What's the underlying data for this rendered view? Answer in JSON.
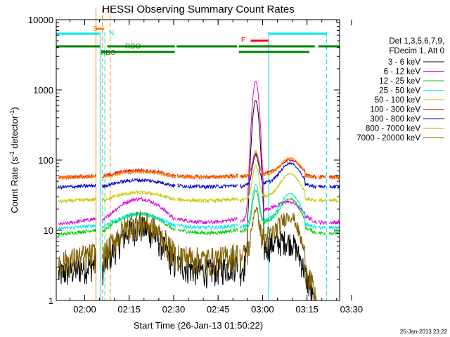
{
  "chart_data": {
    "type": "line",
    "title": "HESSI Observing Summary Count Rates",
    "xlabel": "Start Time (26-Jan-13 01:50:22)",
    "ylabel_main": "Count Rate (s",
    "ylabel_sup1": "-1",
    "ylabel_mid": " detector",
    "ylabel_sup2": "-1",
    "ylabel_end": ")",
    "x_range_min": [
      0,
      95.6
    ],
    "x_ticks": [
      {
        "label": "02:00",
        "t": 9.6
      },
      {
        "label": "02:15",
        "t": 24.6
      },
      {
        "label": "02:30",
        "t": 39.6
      },
      {
        "label": "02:45",
        "t": 54.6
      },
      {
        "label": "03:00",
        "t": 69.6
      },
      {
        "label": "03:15",
        "t": 84.6
      },
      {
        "label": "03:30",
        "t": 99.6
      }
    ],
    "y_scale": "log",
    "ylim": [
      1,
      10000
    ],
    "y_ticks": [
      {
        "label": "10000",
        "v": 10000
      },
      {
        "label": "1000",
        "v": 1000
      },
      {
        "label": "100",
        "v": 100
      },
      {
        "label": "10",
        "v": 10
      },
      {
        "label": "1",
        "v": 1
      }
    ],
    "legend_header": [
      "Det 1,3,5,6,7,9,",
      "FDecim 1, Att 0"
    ],
    "legend_position": "right",
    "timestamp": "25-Jan-2013 23:22",
    "series": [
      {
        "name": "3 - 6 keV",
        "color": "#000000",
        "base": 2,
        "amp": 1.1,
        "peak": 700,
        "low": true
      },
      {
        "name": "6 - 12 keV",
        "color": "#e000e0",
        "base": 11,
        "amp": 0.5,
        "peak": 1300,
        "low": false
      },
      {
        "name": "12 - 25 keV",
        "color": "#00d000",
        "base": 8,
        "amp": 0.4,
        "peak": 25,
        "low": false
      },
      {
        "name": "25 - 50 keV",
        "color": "#00e8e8",
        "base": 10,
        "amp": 0.25,
        "peak": 32,
        "low": false
      },
      {
        "name": "50 - 100 keV",
        "color": "#c8c800",
        "base": 25,
        "amp": 0.15,
        "peak": 55,
        "low": false
      },
      {
        "name": "100 - 300 keV",
        "color": "#e00000",
        "base": 55,
        "amp": 0.12,
        "peak": 60,
        "low": false
      },
      {
        "name": "300 - 800 keV",
        "color": "#0000d0",
        "base": 40,
        "amp": 0.12,
        "peak": 72,
        "low": false
      },
      {
        "name": "800 - 7000 keV",
        "color": "#ff8000",
        "base": 55,
        "amp": 0.1,
        "peak": 72,
        "low": false
      },
      {
        "name": "7000 - 20000 keV",
        "color": "#806000",
        "base": 3,
        "amp": 0.9,
        "peak": 14,
        "low": true
      }
    ],
    "flags": [
      {
        "label": "S",
        "color": "#ff8000"
      },
      {
        "label": "N",
        "color": "#00e8e8"
      },
      {
        "label": "F",
        "color": "#ff0000"
      },
      {
        "label": "RDO",
        "color": "#008000"
      },
      {
        "label": "RDS",
        "color": "#008000"
      }
    ],
    "colors": {
      "axis": "#000000",
      "night_marker": "#00e8e8",
      "saa_marker": "#ff8000",
      "flare_bar": "#ff0000",
      "decim_bar": "#008000"
    }
  }
}
